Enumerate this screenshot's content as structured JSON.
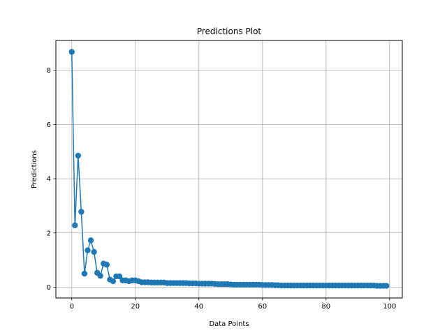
{
  "chart_data": {
    "type": "line",
    "title": "Predictions Plot",
    "xlabel": "Data Points",
    "ylabel": "Predictions",
    "xlim": [
      -5,
      104
    ],
    "ylim": [
      -0.4,
      9.1
    ],
    "xticks": [
      0,
      20,
      40,
      60,
      80,
      100
    ],
    "yticks": [
      0,
      2,
      4,
      6,
      8
    ],
    "xtick_labels": [
      "0",
      "20",
      "40",
      "60",
      "80",
      "100"
    ],
    "ytick_labels": [
      "0",
      "2",
      "4",
      "6",
      "8"
    ],
    "grid": true,
    "marker": "circle",
    "color": "#1f77b4",
    "series": [
      {
        "x": [
          0,
          1,
          2,
          3,
          4,
          5,
          6,
          7,
          8,
          9,
          10,
          11,
          12,
          13,
          14,
          15,
          16,
          17,
          18,
          19,
          20,
          21,
          22,
          23,
          24,
          25,
          26,
          27,
          28,
          29,
          30,
          31,
          32,
          33,
          34,
          35,
          36,
          37,
          38,
          39,
          40,
          41,
          42,
          43,
          44,
          45,
          46,
          47,
          48,
          49,
          50,
          51,
          52,
          53,
          54,
          55,
          56,
          57,
          58,
          59,
          60,
          61,
          62,
          63,
          64,
          65,
          66,
          67,
          68,
          69,
          70,
          71,
          72,
          73,
          74,
          75,
          76,
          77,
          78,
          79,
          80,
          81,
          82,
          83,
          84,
          85,
          86,
          87,
          88,
          89,
          90,
          91,
          92,
          93,
          94,
          95,
          96,
          97,
          98,
          99
        ],
        "values": [
          8.68,
          2.28,
          4.85,
          2.78,
          0.5,
          1.36,
          1.73,
          1.3,
          0.53,
          0.42,
          0.87,
          0.83,
          0.28,
          0.22,
          0.4,
          0.4,
          0.25,
          0.25,
          0.22,
          0.25,
          0.25,
          0.22,
          0.18,
          0.18,
          0.18,
          0.17,
          0.17,
          0.17,
          0.17,
          0.17,
          0.15,
          0.15,
          0.15,
          0.15,
          0.15,
          0.15,
          0.15,
          0.14,
          0.14,
          0.14,
          0.13,
          0.13,
          0.13,
          0.13,
          0.13,
          0.12,
          0.11,
          0.11,
          0.11,
          0.11,
          0.1,
          0.09,
          0.09,
          0.09,
          0.09,
          0.09,
          0.09,
          0.09,
          0.09,
          0.09,
          0.08,
          0.08,
          0.08,
          0.08,
          0.07,
          0.07,
          0.06,
          0.06,
          0.06,
          0.06,
          0.06,
          0.06,
          0.06,
          0.06,
          0.06,
          0.06,
          0.06,
          0.06,
          0.06,
          0.06,
          0.06,
          0.06,
          0.06,
          0.06,
          0.06,
          0.06,
          0.06,
          0.06,
          0.06,
          0.06,
          0.06,
          0.06,
          0.06,
          0.06,
          0.06,
          0.06,
          0.05,
          0.05,
          0.05,
          0.05
        ]
      }
    ]
  }
}
